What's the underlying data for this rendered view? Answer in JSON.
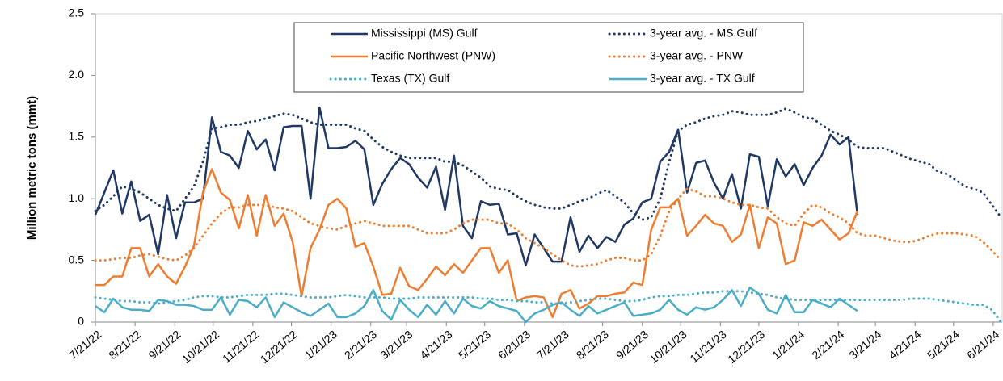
{
  "chart_data": {
    "type": "line",
    "y_label": "Million metric tons (mmt)",
    "x": [
      "7/21/22",
      "7/28/22",
      "8/4/22",
      "8/11/22",
      "8/18/22",
      "8/25/22",
      "9/1/22",
      "9/8/22",
      "9/15/22",
      "9/22/22",
      "9/29/22",
      "10/6/22",
      "10/13/22",
      "10/20/22",
      "10/27/22",
      "11/3/22",
      "11/10/22",
      "11/17/22",
      "11/24/22",
      "12/1/22",
      "12/8/22",
      "12/15/22",
      "12/22/22",
      "12/29/22",
      "1/5/23",
      "1/12/23",
      "1/19/23",
      "1/26/23",
      "2/2/23",
      "2/9/23",
      "2/16/23",
      "2/23/23",
      "3/2/23",
      "3/9/23",
      "3/16/23",
      "3/23/23",
      "3/30/23",
      "4/6/23",
      "4/13/23",
      "4/20/23",
      "4/27/23",
      "5/4/23",
      "5/11/23",
      "5/18/23",
      "5/25/23",
      "6/1/23",
      "6/8/23",
      "6/15/23",
      "6/22/23",
      "6/29/23",
      "7/6/23",
      "7/13/23",
      "7/20/23",
      "7/27/23",
      "8/3/23",
      "8/10/23",
      "8/17/23",
      "8/24/23",
      "8/31/23",
      "9/7/23",
      "9/14/23",
      "9/21/23",
      "9/28/23",
      "10/5/23",
      "10/12/23",
      "10/19/23",
      "10/26/23",
      "11/2/23",
      "11/9/23",
      "11/16/23",
      "11/23/23",
      "11/30/23",
      "12/7/23",
      "12/14/23",
      "12/21/23",
      "12/28/23",
      "1/4/24",
      "1/11/24",
      "1/18/24",
      "1/25/24",
      "2/1/24",
      "2/8/24",
      "2/15/24",
      "2/22/24",
      "2/29/24",
      "3/7/24",
      "3/14/24",
      "3/21/24",
      "3/28/24",
      "4/4/24",
      "4/11/24",
      "4/18/24",
      "4/25/24",
      "5/2/24",
      "5/9/24",
      "5/16/24",
      "5/23/24",
      "5/30/24",
      "6/6/24",
      "6/13/24",
      "6/20/24",
      "6/27/24"
    ],
    "xlim": [
      "7/21/22",
      "6/28/24"
    ],
    "xticks": [
      "7/21/22",
      "8/21/22",
      "9/21/22",
      "10/21/22",
      "11/21/22",
      "12/21/22",
      "1/21/23",
      "2/21/23",
      "3/21/23",
      "4/21/23",
      "5/21/23",
      "6/21/23",
      "7/21/23",
      "8/21/23",
      "9/21/23",
      "10/21/23",
      "11/21/23",
      "12/21/23",
      "1/21/24",
      "2/21/24",
      "3/21/24",
      "4/21/24",
      "5/21/24",
      "6/21/24"
    ],
    "ylim": [
      0,
      2.5
    ],
    "yticks": [
      0,
      0.5,
      {
        "value": 1,
        "label": "1.0"
      },
      1.5,
      {
        "value": 2,
        "label": "2.0"
      },
      2.5
    ],
    "grid": false,
    "legend": "upper center",
    "series": [
      {
        "name": "Mississippi (MS) Gulf",
        "color": "#1f3864",
        "dash": "solid",
        "values": [
          0.87,
          1.05,
          1.23,
          0.88,
          1.14,
          0.82,
          0.87,
          0.55,
          1.03,
          0.68,
          0.97,
          0.97,
          1.0,
          1.66,
          1.38,
          1.35,
          1.25,
          1.55,
          1.4,
          1.48,
          1.23,
          1.58,
          1.59,
          1.59,
          1.0,
          1.74,
          1.41,
          1.41,
          1.42,
          1.47,
          1.4,
          0.95,
          1.12,
          1.24,
          1.33,
          1.28,
          1.17,
          1.09,
          1.26,
          0.91,
          1.35,
          0.78,
          0.68,
          0.98,
          0.95,
          0.96,
          0.71,
          0.72,
          0.46,
          0.71,
          0.6,
          0.49,
          0.49,
          0.85,
          0.57,
          0.7,
          0.6,
          0.69,
          0.65,
          0.79,
          0.84,
          0.97,
          1.0,
          1.3,
          1.38,
          1.56,
          1.05,
          1.29,
          1.31,
          1.13,
          1.0,
          1.2,
          0.92,
          1.36,
          1.34,
          0.94,
          1.32,
          1.18,
          1.28,
          1.11,
          1.25,
          1.35,
          1.52,
          1.44,
          1.5,
          0.87,
          null,
          null,
          null,
          null,
          null,
          null,
          null,
          null,
          null,
          null,
          null,
          null,
          null,
          null,
          null,
          null
        ]
      },
      {
        "name": "3-year avg. - MS Gulf",
        "color": "#1f3864",
        "dash": "dotted",
        "values": [
          0.9,
          0.95,
          1.02,
          1.1,
          1.08,
          1.05,
          1.0,
          0.95,
          0.92,
          0.9,
          1.0,
          1.1,
          1.3,
          1.57,
          1.58,
          1.6,
          1.6,
          1.62,
          1.63,
          1.65,
          1.67,
          1.69,
          1.68,
          1.65,
          1.62,
          1.6,
          1.6,
          1.6,
          1.6,
          1.57,
          1.55,
          1.48,
          1.42,
          1.38,
          1.35,
          1.33,
          1.33,
          1.33,
          1.33,
          1.3,
          1.3,
          1.27,
          1.22,
          1.17,
          1.1,
          1.08,
          1.07,
          1.02,
          0.98,
          0.95,
          0.93,
          0.92,
          0.92,
          0.95,
          0.98,
          1.0,
          1.04,
          1.07,
          1.02,
          0.97,
          0.88,
          0.83,
          0.85,
          1.0,
          1.3,
          1.55,
          1.6,
          1.62,
          1.65,
          1.67,
          1.68,
          1.71,
          1.7,
          1.68,
          1.68,
          1.68,
          1.7,
          1.73,
          1.7,
          1.66,
          1.65,
          1.6,
          1.55,
          1.52,
          1.48,
          1.42,
          1.41,
          1.41,
          1.41,
          1.38,
          1.35,
          1.32,
          1.3,
          1.28,
          1.22,
          1.2,
          1.15,
          1.1,
          1.08,
          1.05,
          0.95,
          0.85
        ]
      },
      {
        "name": "Pacific Northwest (PNW)",
        "color": "#ed7d31",
        "dash": "solid",
        "values": [
          0.3,
          0.3,
          0.37,
          0.37,
          0.6,
          0.6,
          0.37,
          0.47,
          0.37,
          0.31,
          0.45,
          0.62,
          1.05,
          1.24,
          1.05,
          0.99,
          0.76,
          1.03,
          0.7,
          1.03,
          0.78,
          0.88,
          0.65,
          0.21,
          0.6,
          0.75,
          0.95,
          1.0,
          0.92,
          0.61,
          0.64,
          0.45,
          0.22,
          0.23,
          0.44,
          0.29,
          0.26,
          0.35,
          0.45,
          0.38,
          0.47,
          0.4,
          0.5,
          0.6,
          0.6,
          0.4,
          0.5,
          0.17,
          0.2,
          0.21,
          0.2,
          0.04,
          0.23,
          0.26,
          0.11,
          0.15,
          0.21,
          0.21,
          0.23,
          0.24,
          0.32,
          0.3,
          0.75,
          0.93,
          0.93,
          1.0,
          0.7,
          0.78,
          0.87,
          0.8,
          0.78,
          0.65,
          0.71,
          0.95,
          0.6,
          0.85,
          0.8,
          0.47,
          0.5,
          0.81,
          0.78,
          0.83,
          0.75,
          0.67,
          0.72,
          0.9,
          null,
          null,
          null,
          null,
          null,
          null,
          null,
          null,
          null,
          null,
          null,
          null,
          null,
          null,
          null,
          null
        ]
      },
      {
        "name": "3-year avg. - PNW",
        "color": "#ed7d31",
        "dash": "dotted",
        "values": [
          0.5,
          0.5,
          0.51,
          0.52,
          0.52,
          0.54,
          0.55,
          0.53,
          0.51,
          0.5,
          0.54,
          0.6,
          0.7,
          0.8,
          0.88,
          0.93,
          0.93,
          0.95,
          0.95,
          0.95,
          0.93,
          0.92,
          0.9,
          0.85,
          0.8,
          0.78,
          0.76,
          0.75,
          0.78,
          0.8,
          0.82,
          0.8,
          0.78,
          0.78,
          0.78,
          0.78,
          0.75,
          0.72,
          0.72,
          0.72,
          0.75,
          0.8,
          0.83,
          0.83,
          0.83,
          0.8,
          0.8,
          0.75,
          0.68,
          0.64,
          0.6,
          0.55,
          0.5,
          0.46,
          0.45,
          0.46,
          0.47,
          0.5,
          0.52,
          0.52,
          0.5,
          0.5,
          0.55,
          0.7,
          0.9,
          1.0,
          1.08,
          1.06,
          1.02,
          1.02,
          1.0,
          0.97,
          0.95,
          0.95,
          0.93,
          0.92,
          0.85,
          0.8,
          0.78,
          0.88,
          0.95,
          0.93,
          0.88,
          0.85,
          0.8,
          0.72,
          0.7,
          0.7,
          0.68,
          0.66,
          0.65,
          0.65,
          0.67,
          0.7,
          0.72,
          0.72,
          0.72,
          0.71,
          0.7,
          0.65,
          0.58,
          0.5
        ]
      },
      {
        "name": "Texas (TX) Gulf",
        "color": "#4bacc6",
        "dash": "dotted",
        "values": [
          0.2,
          0.19,
          0.18,
          0.17,
          0.17,
          0.16,
          0.16,
          0.15,
          0.16,
          0.17,
          0.18,
          0.2,
          0.21,
          0.21,
          0.2,
          0.2,
          0.21,
          0.22,
          0.22,
          0.22,
          0.23,
          0.23,
          0.22,
          0.21,
          0.2,
          0.2,
          0.2,
          0.21,
          0.22,
          0.21,
          0.2,
          0.2,
          0.2,
          0.19,
          0.19,
          0.19,
          0.2,
          0.2,
          0.2,
          0.2,
          0.2,
          0.2,
          0.2,
          0.19,
          0.19,
          0.18,
          0.18,
          0.17,
          0.17,
          0.16,
          0.16,
          0.15,
          0.15,
          0.16,
          0.17,
          0.18,
          0.19,
          0.19,
          0.18,
          0.17,
          0.17,
          0.18,
          0.2,
          0.21,
          0.21,
          0.22,
          0.22,
          0.23,
          0.24,
          0.24,
          0.25,
          0.25,
          0.25,
          0.24,
          0.23,
          0.22,
          0.2,
          0.19,
          0.18,
          0.18,
          0.18,
          0.18,
          0.18,
          0.18,
          0.18,
          0.18,
          0.18,
          0.18,
          0.18,
          0.18,
          0.18,
          0.19,
          0.19,
          0.19,
          0.18,
          0.17,
          0.16,
          0.15,
          0.14,
          0.14,
          0.1,
          0.0
        ]
      },
      {
        "name": "3-year avg. - TX Gulf",
        "color": "#4bacc6",
        "dash": "solid",
        "values": [
          0.13,
          0.08,
          0.19,
          0.12,
          0.1,
          0.1,
          0.09,
          0.18,
          0.17,
          0.14,
          0.14,
          0.13,
          0.1,
          0.1,
          0.2,
          0.06,
          0.18,
          0.17,
          0.12,
          0.2,
          0.04,
          0.16,
          0.12,
          0.08,
          0.05,
          0.1,
          0.15,
          0.04,
          0.04,
          0.07,
          0.13,
          0.26,
          0.09,
          0.02,
          0.18,
          0.1,
          0.04,
          0.14,
          0.06,
          0.17,
          0.07,
          0.19,
          0.13,
          0.11,
          0.17,
          0.13,
          0.11,
          0.09,
          0.0,
          0.07,
          0.1,
          0.14,
          0.16,
          0.1,
          0.05,
          0.13,
          0.07,
          0.1,
          0.13,
          0.16,
          0.05,
          0.06,
          0.07,
          0.1,
          0.18,
          0.1,
          0.06,
          0.12,
          0.1,
          0.12,
          0.18,
          0.26,
          0.13,
          0.28,
          0.23,
          0.1,
          0.07,
          0.22,
          0.08,
          0.08,
          0.18,
          0.15,
          0.12,
          0.19,
          0.14,
          0.09,
          null,
          null,
          null,
          null,
          null,
          null,
          null,
          null,
          null,
          null,
          null,
          null,
          null,
          null,
          null,
          null
        ]
      }
    ]
  }
}
